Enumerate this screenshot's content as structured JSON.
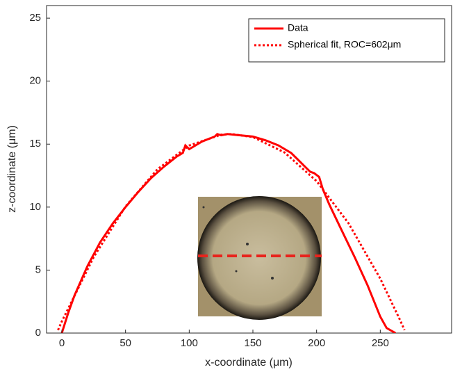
{
  "chart_data": {
    "type": "line",
    "x_label": "x-coordinate (μm)",
    "y_label": "z-coordinate (μm)",
    "xlim": [
      -12,
      306
    ],
    "ylim": [
      0,
      26
    ],
    "xticks": [
      0,
      50,
      100,
      150,
      200,
      250
    ],
    "yticks": [
      0,
      5,
      10,
      15,
      20,
      25
    ],
    "legend": "top-right",
    "series": [
      {
        "name": "Data",
        "color": "#ff0000",
        "style": "solid",
        "x": [
          0,
          5,
          10,
          20,
          30,
          40,
          50,
          60,
          70,
          80,
          90,
          95,
          97,
          100,
          110,
          120,
          122,
          125,
          130,
          140,
          150,
          160,
          170,
          180,
          185,
          190,
          195,
          198,
          202,
          205,
          210,
          220,
          230,
          240,
          250,
          255,
          262
        ],
        "values": [
          0,
          1.6,
          3.0,
          5.3,
          7.2,
          8.7,
          10.0,
          11.2,
          12.3,
          13.2,
          14.0,
          14.3,
          14.9,
          14.6,
          15.2,
          15.6,
          15.8,
          15.7,
          15.8,
          15.7,
          15.6,
          15.3,
          14.9,
          14.3,
          13.8,
          13.3,
          12.8,
          12.7,
          12.4,
          11.4,
          10.2,
          8.1,
          6.0,
          3.8,
          1.3,
          0.4,
          0
        ]
      },
      {
        "name": "Spherical fit, ROC=602μm",
        "color": "#ff0000",
        "style": "dotted",
        "x": [
          -3,
          0,
          25,
          50,
          75,
          100,
          125,
          133,
          150,
          175,
          200,
          225,
          250,
          266,
          269
        ],
        "values": [
          0.24,
          0.93,
          6.03,
          10.05,
          13.0,
          14.89,
          15.75,
          15.8,
          15.56,
          14.33,
          12.06,
          8.73,
          4.32,
          0.93,
          0.24
        ]
      }
    ]
  }
}
